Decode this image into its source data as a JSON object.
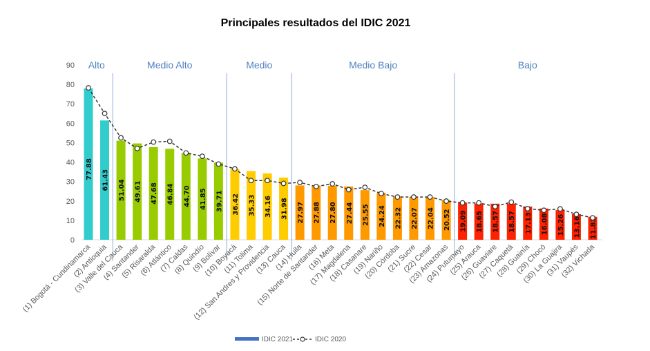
{
  "chart_data": {
    "type": "bar",
    "title": "Principales resultados del IDIC 2021",
    "xlabel": "",
    "ylabel": "",
    "ylim": [
      0,
      90
    ],
    "yticks": [
      0,
      10,
      20,
      30,
      40,
      50,
      60,
      70,
      80,
      90
    ],
    "grid": false,
    "legend_position": "bottom",
    "categories": [
      "(1) Bogotá - Cundinamarca",
      "(2) Antioquia",
      "(3) Valle del Cauca",
      "(4) Santander",
      "(5) Risaralda",
      "(6) Atlántico",
      "(7) Caldas",
      "(8) Quindío",
      "(9) Bolívar",
      "(10) Boyacá",
      "(11) Tolima",
      "(12) San Andres y Providencia",
      "(13) Cauca",
      "(14) Huila",
      "(15) Norte de Santander",
      "(16) Meta",
      "(17) Magdalena",
      "(18) Casanare",
      "(19) Nariño",
      "(20) Córdoba",
      "(21) Sucre",
      "(22) Cesar",
      "(23) Amazonas",
      "(24) Putumayo",
      "(25) Arauca",
      "(26) Guaviare",
      "(27) Caquetá",
      "(28) Guainía",
      "(29) Chocó",
      "(30) La Guajira",
      "(31) Vaupés",
      "(32) Vichada"
    ],
    "series": [
      {
        "name": "IDIC 2021",
        "kind": "bar",
        "legend_color": "#4472c4",
        "values": [
          77.88,
          61.43,
          51.04,
          49.61,
          47.68,
          46.84,
          44.7,
          41.85,
          39.71,
          36.42,
          35.33,
          34.16,
          31.98,
          27.97,
          27.88,
          27.8,
          27.44,
          25.55,
          24.24,
          22.32,
          22.07,
          22.04,
          20.52,
          19.09,
          18.65,
          18.57,
          18.57,
          17.13,
          16.08,
          15.26,
          13.16,
          11.83
        ],
        "labels": [
          "77.88",
          "61.43",
          "51.04",
          "49.61",
          "47.68",
          "46.84",
          "44.70",
          "41.85",
          "39.71",
          "36.42",
          "35.33",
          "34.16",
          "31.98",
          "27.97",
          "27.88",
          "27.80",
          "27.44",
          "25.55",
          "24.24",
          "22.32",
          "22.07",
          "22.04",
          "20.52",
          "19.09",
          "18.65",
          "18.57",
          "18.57",
          "17.13",
          "16.08",
          "15.26",
          "13.16",
          "11.83"
        ]
      },
      {
        "name": "IDIC 2020",
        "kind": "line",
        "style": "dashed with hollow circle markers",
        "color": "#333333",
        "values": [
          78.2,
          65.0,
          52.5,
          47.0,
          50.3,
          50.7,
          44.7,
          43.0,
          39.0,
          36.5,
          30.5,
          30.5,
          29.0,
          29.5,
          27.4,
          28.8,
          25.8,
          27.0,
          23.8,
          22.0,
          22.0,
          22.0,
          19.9,
          19.0,
          19.0,
          17.1,
          19.4,
          16.0,
          15.2,
          15.9,
          13.1,
          11.3
        ]
      }
    ],
    "groups": [
      {
        "label": "Alto",
        "from": 0,
        "to": 1,
        "color": "#33cccc"
      },
      {
        "label": "Medio Alto",
        "from": 2,
        "to": 8,
        "color": "#99cc00"
      },
      {
        "label": "Medio",
        "from": 9,
        "to": 12,
        "color": "#ffcc00"
      },
      {
        "label": "Medio Bajo",
        "from": 13,
        "to": 22,
        "color": "#ff9900"
      },
      {
        "label": "Bajo",
        "from": 23,
        "to": 31,
        "color": "#ff2200"
      }
    ]
  }
}
